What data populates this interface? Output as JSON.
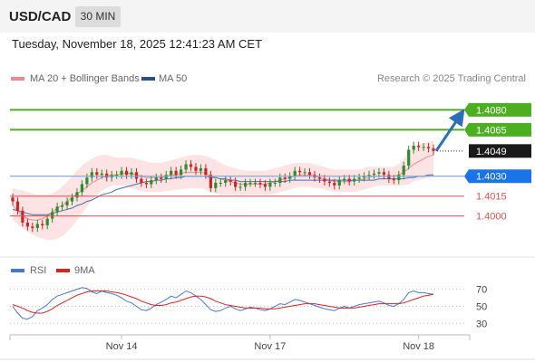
{
  "header": {
    "pair": "USD/CAD",
    "timeframe": "30 MIN",
    "timestamp": "Tuesday, November 18, 2025 12:41:23 AM CET"
  },
  "legend": {
    "ma20": "MA 20 + Bollinger Bands",
    "ma50": "MA 50",
    "credit": "Research © 2025 Trading Central",
    "rsi": "RSI",
    "rsi_ma": "9MA"
  },
  "colors": {
    "green": "#4caf1f",
    "blue_target": "#2a6fb8",
    "blue_level": "#1a73e8",
    "red_level": "#e05050",
    "candle_green": "#2e8b2e",
    "candle_red": "#c62828",
    "bollinger_fill": "#fde3e3",
    "ma20": "#f08a8a",
    "ma50": "#4a6fb0",
    "rsi": "#4a78d0",
    "rsi_ma": "#e02020",
    "current_price_bg": "#1a1a1a"
  },
  "chart_data": {
    "type": "candlestick",
    "price_axis": {
      "ylim": [
        1.3965,
        1.4098
      ]
    },
    "levels": [
      {
        "value": 1.408,
        "label": "1.4080",
        "kind": "resistance-target"
      },
      {
        "value": 1.4065,
        "label": "1.4065",
        "kind": "resistance"
      },
      {
        "value": 1.4049,
        "label": "1.4049",
        "kind": "current-price"
      },
      {
        "value": 1.403,
        "label": "1.4030",
        "kind": "pivot"
      },
      {
        "value": 1.4015,
        "label": "1.4015",
        "kind": "support"
      },
      {
        "value": 1.4,
        "label": "1.4000",
        "kind": "support"
      }
    ],
    "x_ticks": [
      "Nov 14",
      "Nov 17",
      "Nov 18"
    ],
    "x_tick_bar_index": [
      22,
      52,
      82
    ],
    "bar_count": 86,
    "close": [
      1.4011,
      1.4004,
      1.3995,
      1.3992,
      1.3991,
      1.3994,
      1.3993,
      1.3998,
      1.4003,
      1.4007,
      1.4008,
      1.4011,
      1.4014,
      1.4018,
      1.4024,
      1.4029,
      1.4033,
      1.4031,
      1.4032,
      1.4029,
      1.4031,
      1.4031,
      1.4034,
      1.4031,
      1.4033,
      1.4028,
      1.4025,
      1.4024,
      1.4027,
      1.4029,
      1.4028,
      1.4031,
      1.4034,
      1.4031,
      1.4035,
      1.4039,
      1.4037,
      1.4034,
      1.4036,
      1.4031,
      1.4021,
      1.4025,
      1.4025,
      1.4027,
      1.4026,
      1.4022,
      1.4022,
      1.4025,
      1.4025,
      1.4025,
      1.4024,
      1.4022,
      1.4025,
      1.4025,
      1.4029,
      1.4028,
      1.403,
      1.4034,
      1.4033,
      1.4033,
      1.4031,
      1.4029,
      1.4028,
      1.4026,
      1.4025,
      1.4023,
      1.4027,
      1.4028,
      1.4026,
      1.4028,
      1.4029,
      1.403,
      1.4031,
      1.4032,
      1.4033,
      1.4031,
      1.4028,
      1.4027,
      1.4031,
      1.4038,
      1.405,
      1.4053,
      1.4052,
      1.4052,
      1.4051,
      1.4049
    ],
    "ma20": [
      1.4008,
      1.4004,
      1.4,
      1.3998,
      1.3997,
      1.3997,
      1.3998,
      1.4,
      1.4003,
      1.4006,
      1.4008,
      1.4011,
      1.4014,
      1.4017,
      1.4019,
      1.4022,
      1.4025,
      1.4027,
      1.4029,
      1.403,
      1.4031,
      1.4031,
      1.4032,
      1.4032,
      1.4032,
      1.4031,
      1.403,
      1.4029,
      1.4029,
      1.4029,
      1.4029,
      1.403,
      1.4031,
      1.4031,
      1.4032,
      1.4033,
      1.4033,
      1.4033,
      1.4033,
      1.4032,
      1.403,
      1.4029,
      1.4028,
      1.4027,
      1.4026,
      1.4025,
      1.4024,
      1.4024,
      1.4024,
      1.4024,
      1.4024,
      1.4024,
      1.4025,
      1.4026,
      1.4027,
      1.4028,
      1.4029,
      1.403,
      1.4031,
      1.4031,
      1.4031,
      1.403,
      1.4029,
      1.4028,
      1.4027,
      1.4026,
      1.4026,
      1.4026,
      1.4026,
      1.4027,
      1.4027,
      1.4028,
      1.4029,
      1.403,
      1.403,
      1.403,
      1.403,
      1.403,
      1.4031,
      1.4033,
      1.4036,
      1.4039,
      1.4041,
      1.4043,
      1.4045,
      1.4046
    ],
    "bb_upper": [
      1.4021,
      1.402,
      1.4019,
      1.4018,
      1.4017,
      1.4016,
      1.4016,
      1.4016,
      1.4017,
      1.4019,
      1.4022,
      1.4026,
      1.403,
      1.4034,
      1.4038,
      1.4041,
      1.4043,
      1.4045,
      1.4046,
      1.4046,
      1.4045,
      1.4044,
      1.4044,
      1.4044,
      1.4044,
      1.4043,
      1.4042,
      1.4041,
      1.404,
      1.404,
      1.404,
      1.4041,
      1.4042,
      1.4043,
      1.4044,
      1.4045,
      1.4046,
      1.4046,
      1.4046,
      1.4045,
      1.4044,
      1.4042,
      1.404,
      1.4038,
      1.4037,
      1.4036,
      1.4035,
      1.4034,
      1.4034,
      1.4034,
      1.4034,
      1.4034,
      1.4035,
      1.4036,
      1.4037,
      1.4038,
      1.4039,
      1.404,
      1.404,
      1.404,
      1.404,
      1.4039,
      1.4038,
      1.4037,
      1.4036,
      1.4035,
      1.4035,
      1.4035,
      1.4035,
      1.4035,
      1.4035,
      1.4036,
      1.4037,
      1.4037,
      1.4037,
      1.4037,
      1.4037,
      1.4037,
      1.4039,
      1.4043,
      1.4048,
      1.4052,
      1.4054,
      1.4055,
      1.4056,
      1.4057
    ],
    "bb_lower": [
      1.3997,
      1.3994,
      1.3991,
      1.3988,
      1.3986,
      1.3984,
      1.3983,
      1.3982,
      1.3982,
      1.3983,
      1.3985,
      1.3988,
      1.3992,
      1.3997,
      1.4002,
      1.4007,
      1.4012,
      1.4016,
      1.4019,
      1.4021,
      1.4023,
      1.4023,
      1.4023,
      1.4022,
      1.4021,
      1.402,
      1.4019,
      1.4018,
      1.4018,
      1.4018,
      1.4018,
      1.4019,
      1.4019,
      1.402,
      1.402,
      1.4021,
      1.4021,
      1.4021,
      1.4021,
      1.402,
      1.4018,
      1.4017,
      1.4016,
      1.4016,
      1.4016,
      1.4016,
      1.4016,
      1.4016,
      1.4016,
      1.4016,
      1.4016,
      1.4016,
      1.4016,
      1.4017,
      1.4018,
      1.4019,
      1.402,
      1.4021,
      1.4022,
      1.4022,
      1.4022,
      1.4021,
      1.4021,
      1.402,
      1.4019,
      1.4018,
      1.4018,
      1.4018,
      1.4018,
      1.4018,
      1.4019,
      1.402,
      1.4021,
      1.4022,
      1.4023,
      1.4023,
      1.4023,
      1.4023,
      1.4023,
      1.4023,
      1.4024,
      1.4026,
      1.4027,
      1.4028,
      1.4029,
      1.403
    ],
    "ma50": [
      1.4005,
      1.4004,
      1.4003,
      1.4002,
      1.4001,
      1.4001,
      1.4001,
      1.4001,
      1.4002,
      1.4003,
      1.4004,
      1.4005,
      1.4006,
      1.4008,
      1.4009,
      1.4011,
      1.4012,
      1.4014,
      1.4016,
      1.4017,
      1.4018,
      1.402,
      1.4021,
      1.4022,
      1.4023,
      1.4024,
      1.4025,
      1.4026,
      1.4026,
      1.4027,
      1.4027,
      1.4028,
      1.4028,
      1.4029,
      1.4029,
      1.403,
      1.403,
      1.403,
      1.403,
      1.403,
      1.4029,
      1.4029,
      1.4028,
      1.4028,
      1.4027,
      1.4027,
      1.4026,
      1.4026,
      1.4026,
      1.4026,
      1.4026,
      1.4026,
      1.4026,
      1.4026,
      1.4026,
      1.4026,
      1.4027,
      1.4027,
      1.4027,
      1.4027,
      1.4027,
      1.4027,
      1.4027,
      1.4027,
      1.4027,
      1.4027,
      1.4027,
      1.4027,
      1.4027,
      1.4027,
      1.4027,
      1.4027,
      1.4027,
      1.4027,
      1.4028,
      1.4028,
      1.4028,
      1.4028,
      1.4028,
      1.4028,
      1.4029,
      1.4029,
      1.403,
      1.403,
      1.4031,
      1.4031
    ],
    "rsi_axis": {
      "ylim": [
        25,
        76
      ],
      "ticks": [
        70,
        50,
        30
      ]
    },
    "rsi": [
      50,
      42,
      36,
      35,
      38,
      45,
      48,
      52,
      58,
      62,
      64,
      66,
      68,
      70,
      72,
      71,
      67,
      65,
      68,
      66,
      65,
      63,
      60,
      56,
      54,
      50,
      46,
      45,
      48,
      52,
      55,
      58,
      62,
      60,
      64,
      68,
      66,
      62,
      58,
      52,
      46,
      44,
      45,
      48,
      50,
      47,
      45,
      47,
      49,
      48,
      46,
      45,
      47,
      50,
      53,
      52,
      55,
      58,
      57,
      55,
      53,
      51,
      49,
      47,
      46,
      45,
      48,
      50,
      48,
      50,
      52,
      53,
      54,
      55,
      56,
      54,
      51,
      50,
      53,
      58,
      66,
      68,
      66,
      66,
      65,
      64
    ],
    "rsi_ma": [
      52,
      50,
      48,
      45,
      43,
      42,
      42,
      44,
      47,
      51,
      54,
      57,
      60,
      63,
      65,
      67,
      68,
      68,
      68,
      68,
      67,
      66,
      65,
      63,
      61,
      59,
      56,
      54,
      52,
      51,
      51,
      52,
      54,
      55,
      57,
      59,
      61,
      62,
      62,
      61,
      59,
      56,
      54,
      52,
      51,
      50,
      49,
      48,
      48,
      48,
      48,
      47,
      47,
      47,
      48,
      49,
      50,
      51,
      52,
      53,
      53,
      53,
      52,
      51,
      50,
      49,
      48,
      48,
      48,
      48,
      49,
      50,
      51,
      52,
      53,
      53,
      53,
      53,
      53,
      54,
      56,
      58,
      60,
      62,
      63,
      64
    ],
    "rsi_ticks": [
      "70",
      "50",
      "30"
    ]
  }
}
